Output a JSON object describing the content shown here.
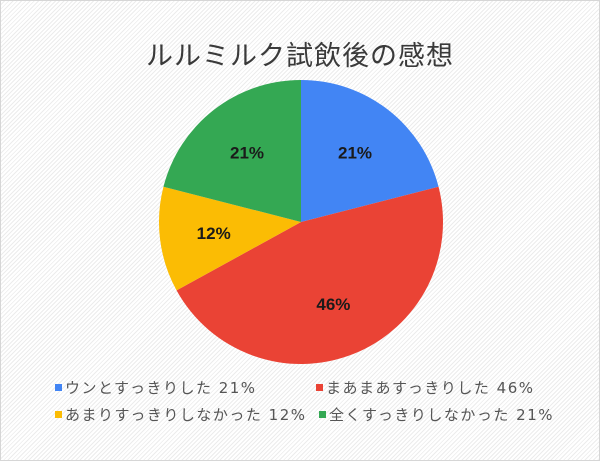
{
  "chart": {
    "title": "ルルミルク試飲後の感想"
  },
  "legend": [
    {
      "label": "ウンとすっきりした 21%",
      "color": "#4285F4"
    },
    {
      "label": "まあまあすっきりした 46%",
      "color": "#EA4335"
    },
    {
      "label": "あまりすっきりしなかった 12%",
      "color": "#FBBC04"
    },
    {
      "label": "全くすっきりしなかった 21%",
      "color": "#34A853"
    }
  ],
  "slices": [
    {
      "label": "21%",
      "color": "#4285F4"
    },
    {
      "label": "46%",
      "color": "#EA4335"
    },
    {
      "label": "12%",
      "color": "#FBBC04"
    },
    {
      "label": "21%",
      "color": "#34A853"
    }
  ],
  "chart_data": {
    "type": "pie",
    "title": "ルルミルク試飲後の感想",
    "categories": [
      "ウンとすっきりした",
      "まあまあすっきりした",
      "あまりすっきりしなかった",
      "全くすっきりしなかった"
    ],
    "values": [
      21,
      46,
      12,
      21
    ],
    "unit": "%",
    "colors": [
      "#4285F4",
      "#EA4335",
      "#FBBC04",
      "#34A853"
    ],
    "data_labels": [
      "21%",
      "46%",
      "12%",
      "21%"
    ],
    "legend_position": "bottom",
    "start_angle": "top (12 o'clock), clockwise"
  }
}
